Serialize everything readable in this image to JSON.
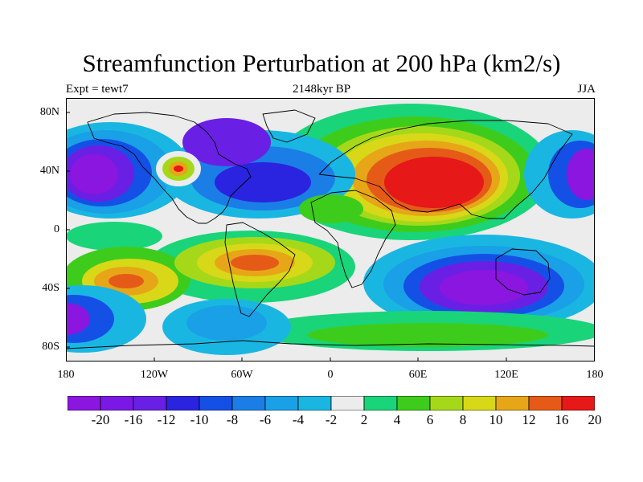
{
  "title": "Streamfunction Perturbation at 200 hPa (km2/s)",
  "left_subtitle": "Expt = tewt7",
  "center_subtitle": "2148kyr BP",
  "right_subtitle": "JJA",
  "lat_labels": [
    "80N",
    "40N",
    "0",
    "40S",
    "80S"
  ],
  "lon_labels": [
    "180",
    "120W",
    "60W",
    "0",
    "60E",
    "120E",
    "180"
  ],
  "colorbar": {
    "labels": [
      "-20",
      "-16",
      "-12",
      "-10",
      "-8",
      "-6",
      "-4",
      "-2",
      "2",
      "4",
      "6",
      "8",
      "10",
      "12",
      "16",
      "20"
    ],
    "colors": [
      "#8a16e0",
      "#7a18e6",
      "#6a1fe4",
      "#2a24e0",
      "#1550e6",
      "#1a7ee6",
      "#19a0e6",
      "#1ab6e2",
      "#ececec",
      "#1ad47a",
      "#3ecc1c",
      "#a6d81a",
      "#d8d818",
      "#e6a618",
      "#e65a18",
      "#e61818"
    ]
  },
  "map_data": {
    "type": "filled-contour",
    "projection": "cylindrical equidistant",
    "lon_range": [
      -180,
      180
    ],
    "lat_range": [
      -90,
      90
    ],
    "background_color": "#ececec",
    "features": [
      {
        "name": "Asian high",
        "lon": 85,
        "lat": 33,
        "value": 22
      },
      {
        "name": "North Atlantic low",
        "lon": -55,
        "lat": 45,
        "value": -12
      },
      {
        "name": "Central Pacific low",
        "lon": -165,
        "lat": 45,
        "value": -22
      },
      {
        "name": "West Pacific low",
        "lon": 175,
        "lat": 40,
        "value": -20
      },
      {
        "name": "North American high",
        "lon": -100,
        "lat": 42,
        "value": 14
      },
      {
        "name": "South American high",
        "lon": -50,
        "lat": -22,
        "value": 17
      },
      {
        "name": "South Pacific high",
        "lon": -130,
        "lat": -35,
        "value": 16
      },
      {
        "name": "Indian Ocean / Australia low",
        "lon": 100,
        "lat": -33,
        "value": -22
      },
      {
        "name": "South Pacific low",
        "lon": -170,
        "lat": -60,
        "value": -20
      },
      {
        "name": "Drake Passage low",
        "lon": -65,
        "lat": -60,
        "value": -7
      }
    ]
  }
}
